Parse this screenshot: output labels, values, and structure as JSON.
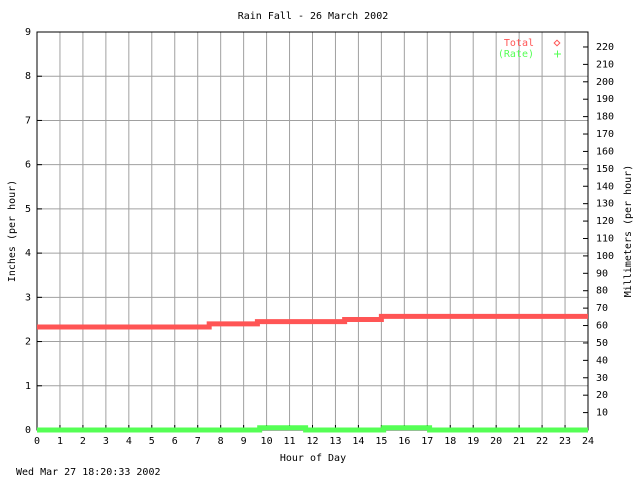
{
  "chart_data": {
    "type": "line",
    "title": "Rain Fall - 26 March 2002",
    "xlabel": "Hour of Day",
    "ylabel": "Inches (per hour)",
    "y2label": "Millimeters (per hour)",
    "footer": "Wed Mar 27 18:20:33 2002",
    "xlim": [
      0,
      24
    ],
    "xticks": [
      0,
      1,
      2,
      3,
      4,
      5,
      6,
      7,
      8,
      9,
      10,
      11,
      12,
      13,
      14,
      15,
      16,
      17,
      18,
      19,
      20,
      21,
      22,
      23,
      24
    ],
    "ylim": [
      0,
      9
    ],
    "yticks": [
      0,
      1,
      2,
      3,
      4,
      5,
      6,
      7,
      8,
      9
    ],
    "y2lim": [
      0,
      228.6
    ],
    "y2ticks": [
      10,
      20,
      30,
      40,
      50,
      60,
      70,
      80,
      90,
      100,
      110,
      120,
      130,
      140,
      150,
      160,
      170,
      180,
      190,
      200,
      210,
      220
    ],
    "grid": true,
    "legend": "top-right",
    "series": [
      {
        "name": "Total",
        "color": "#ff5555",
        "x": [
          0,
          7.5,
          7.5,
          9.6,
          9.6,
          13.4,
          13.4,
          15,
          15,
          24
        ],
        "values": [
          2.33,
          2.33,
          2.4,
          2.4,
          2.45,
          2.45,
          2.5,
          2.5,
          2.57,
          2.57
        ]
      },
      {
        "name": "(Rate)",
        "color": "#55ff55",
        "x": [
          0,
          9.7,
          9.7,
          11.7,
          11.7,
          15.1,
          15.1,
          17.1,
          17.1,
          24
        ],
        "values": [
          0,
          0,
          0.05,
          0.05,
          0,
          0,
          0.05,
          0.05,
          0,
          0
        ]
      }
    ]
  }
}
